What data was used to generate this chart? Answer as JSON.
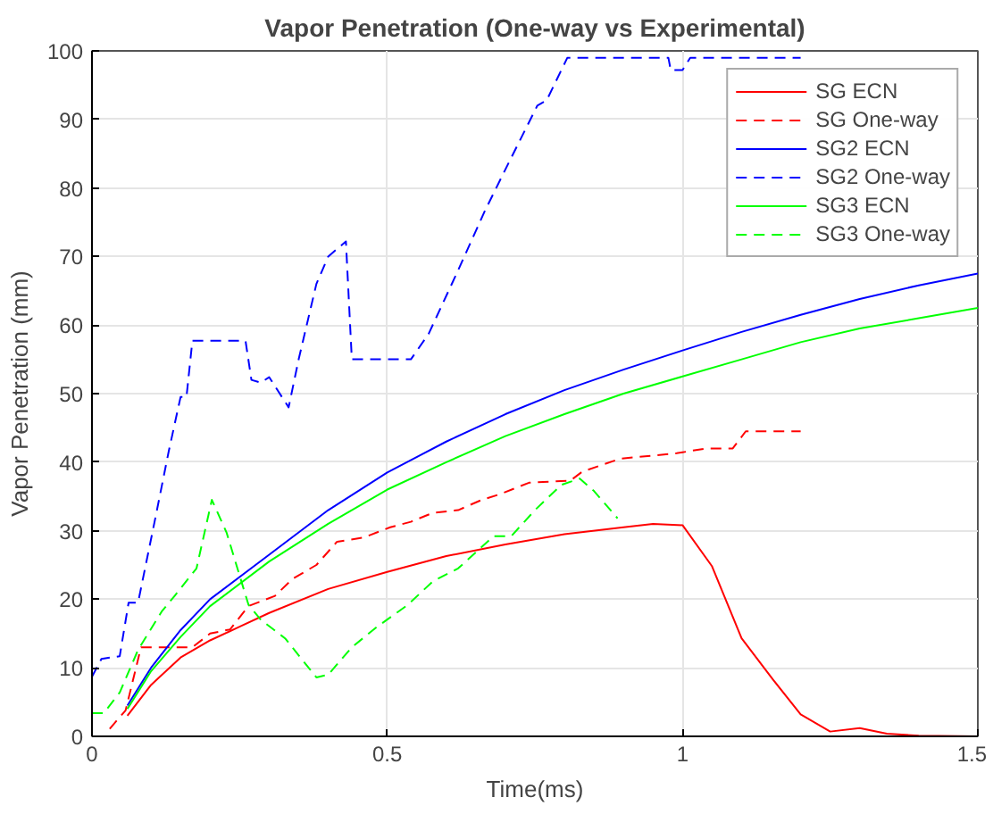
{
  "chart_data": {
    "type": "line",
    "title": "Vapor Penetration (One-way vs Experimental)",
    "xlabel": "Time(ms)",
    "ylabel": "Vapor Penetration (mm)",
    "xlim": [
      0,
      1.5
    ],
    "ylim": [
      0,
      100
    ],
    "xticks": [
      0,
      0.5,
      1,
      1.5
    ],
    "yticks": [
      0,
      10,
      20,
      30,
      40,
      50,
      60,
      70,
      80,
      90,
      100
    ],
    "grid": true,
    "legend": "top right",
    "series": [
      {
        "name": "SG ECN",
        "color": "#ff0000",
        "line_style": "solid",
        "x": [
          0.06,
          0.1,
          0.15,
          0.2,
          0.25,
          0.3,
          0.4,
          0.5,
          0.6,
          0.7,
          0.8,
          0.9,
          0.95,
          1.0,
          1.05,
          1.1,
          1.154,
          1.2,
          1.25,
          1.3,
          1.346,
          1.4,
          1.5
        ],
        "values": [
          3,
          7.5,
          11.5,
          14,
          16,
          18,
          21.5,
          24,
          26.3,
          28,
          29.5,
          30.5,
          31,
          30.8,
          24.8,
          14.3,
          8.2,
          3.2,
          0.7,
          1.2,
          0.4,
          0.1,
          0
        ]
      },
      {
        "name": "SG One-way",
        "color": "#ff0000",
        "line_style": "dashed",
        "x": [
          0.03,
          0.057,
          0.083,
          0.17,
          0.2,
          0.234,
          0.265,
          0.31,
          0.34,
          0.38,
          0.415,
          0.46,
          0.505,
          0.54,
          0.577,
          0.62,
          0.66,
          0.69,
          0.74,
          0.81,
          0.83,
          0.894,
          0.99,
          1.04,
          1.085,
          1.107,
          1.2
        ],
        "values": [
          1.1,
          3.8,
          13,
          13,
          15,
          15.6,
          19,
          20.5,
          23,
          25,
          28.4,
          29,
          30.5,
          31.3,
          32.6,
          33,
          34.5,
          35.3,
          37,
          37.3,
          38.6,
          40.5,
          41.3,
          42,
          42,
          44.5,
          44.5
        ]
      },
      {
        "name": "SG2 ECN",
        "color": "#0000ff",
        "line_style": "solid",
        "x": [
          0.06,
          0.1,
          0.15,
          0.2,
          0.3,
          0.4,
          0.5,
          0.6,
          0.7,
          0.8,
          0.9,
          1.0,
          1.1,
          1.2,
          1.3,
          1.4,
          1.5
        ],
        "values": [
          4.5,
          10,
          15.5,
          20,
          26.5,
          33,
          38.5,
          43,
          47,
          50.5,
          53.5,
          56.3,
          59,
          61.5,
          63.8,
          65.8,
          67.5
        ]
      },
      {
        "name": "SG2 One-way",
        "color": "#0000ff",
        "line_style": "dashed",
        "x": [
          0,
          0.016,
          0.047,
          0.062,
          0.078,
          0.11,
          0.13,
          0.15,
          0.16,
          0.17,
          0.26,
          0.27,
          0.286,
          0.3,
          0.333,
          0.35,
          0.38,
          0.4,
          0.43,
          0.44,
          0.54,
          0.57,
          0.62,
          0.665,
          0.7,
          0.754,
          0.77,
          0.805,
          0.976,
          0.98,
          1.0,
          1.013,
          1.2
        ],
        "values": [
          8.7,
          11.3,
          11.7,
          19.5,
          19.5,
          33,
          41.6,
          49.5,
          49.5,
          57.7,
          57.7,
          52,
          51.6,
          52.4,
          48,
          55,
          66,
          70,
          72.2,
          55,
          55,
          58.7,
          68,
          76.6,
          82.7,
          92,
          92.8,
          99,
          99,
          97.2,
          97.2,
          99,
          99
        ]
      },
      {
        "name": "SG3 ECN",
        "color": "#00ff00",
        "line_style": "solid",
        "x": [
          0.06,
          0.1,
          0.15,
          0.2,
          0.3,
          0.4,
          0.5,
          0.6,
          0.7,
          0.8,
          0.9,
          1.0,
          1.1,
          1.2,
          1.3,
          1.4,
          1.5
        ],
        "values": [
          4,
          9.5,
          14.5,
          19,
          25.5,
          31,
          36,
          40,
          43.8,
          47,
          50,
          52.5,
          55,
          57.5,
          59.5,
          61,
          62.5
        ]
      },
      {
        "name": "SG3 One-way",
        "color": "#00ff00",
        "line_style": "dashed",
        "x": [
          0,
          0.02,
          0.047,
          0.078,
          0.118,
          0.14,
          0.177,
          0.203,
          0.228,
          0.265,
          0.286,
          0.327,
          0.38,
          0.4,
          0.44,
          0.483,
          0.535,
          0.577,
          0.62,
          0.68,
          0.71,
          0.75,
          0.795,
          0.826,
          0.85,
          0.89
        ],
        "values": [
          3.4,
          3.4,
          6.4,
          12.6,
          18.2,
          20.5,
          24.5,
          34.5,
          29.7,
          19.2,
          17,
          14.3,
          8.6,
          9,
          13,
          16,
          19.2,
          22.6,
          24.5,
          29.2,
          29.2,
          33,
          36.7,
          37.6,
          35.8,
          31.8
        ]
      }
    ]
  }
}
